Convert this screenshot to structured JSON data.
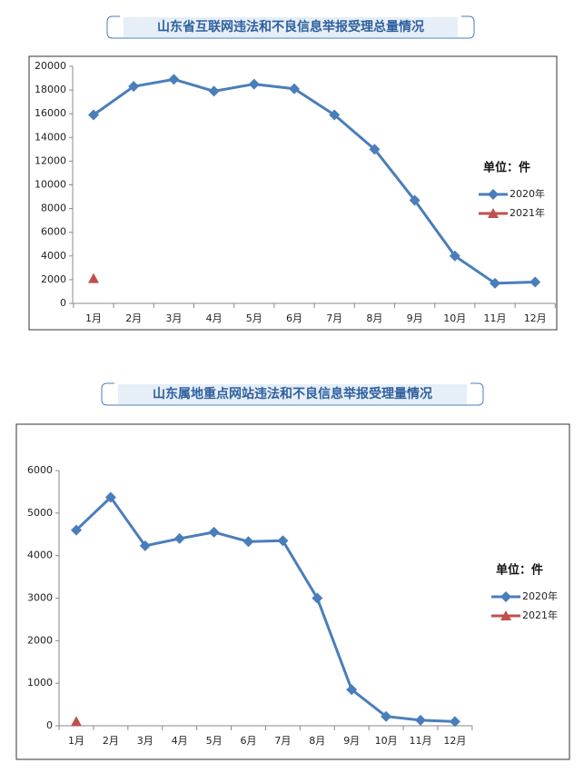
{
  "chart_data": [
    {
      "type": "line",
      "title": "山东省互联网违法和不良信息举报受理总量情况",
      "unit": "单位：件",
      "categories": [
        "1月",
        "2月",
        "3月",
        "4月",
        "5月",
        "6月",
        "7月",
        "8月",
        "9月",
        "10月",
        "11月",
        "12月"
      ],
      "series": [
        {
          "name": "2020年",
          "color": "#4a7ebb",
          "marker": "diamond",
          "values": [
            15900,
            18300,
            18900,
            17900,
            18500,
            18100,
            15900,
            13000,
            8700,
            4000,
            1700,
            1800
          ]
        },
        {
          "name": "2021年",
          "color": "#c0504d",
          "marker": "triangle",
          "values": [
            2100,
            null,
            null,
            null,
            null,
            null,
            null,
            null,
            null,
            null,
            null,
            null
          ]
        }
      ],
      "ylim": [
        0,
        20000
      ],
      "yticks": [
        0,
        2000,
        4000,
        6000,
        8000,
        10000,
        12000,
        14000,
        16000,
        18000,
        20000
      ],
      "grid": false
    },
    {
      "type": "line",
      "title": "山东属地重点网站违法和不良信息举报受理量情况",
      "unit": "单位：件",
      "categories": [
        "1月",
        "2月",
        "3月",
        "4月",
        "5月",
        "6月",
        "7月",
        "8月",
        "9月",
        "10月",
        "11月",
        "12月"
      ],
      "series": [
        {
          "name": "2020年",
          "color": "#4a7ebb",
          "marker": "diamond",
          "values": [
            4600,
            5370,
            4230,
            4400,
            4550,
            4330,
            4350,
            3000,
            850,
            220,
            130,
            100
          ]
        },
        {
          "name": "2021年",
          "color": "#c0504d",
          "marker": "triangle",
          "values": [
            100,
            null,
            null,
            null,
            null,
            null,
            null,
            null,
            null,
            null,
            null,
            null
          ]
        }
      ],
      "ylim": [
        0,
        6000
      ],
      "yticks": [
        0,
        1000,
        2000,
        3000,
        4000,
        5000,
        6000
      ],
      "grid": false
    }
  ]
}
